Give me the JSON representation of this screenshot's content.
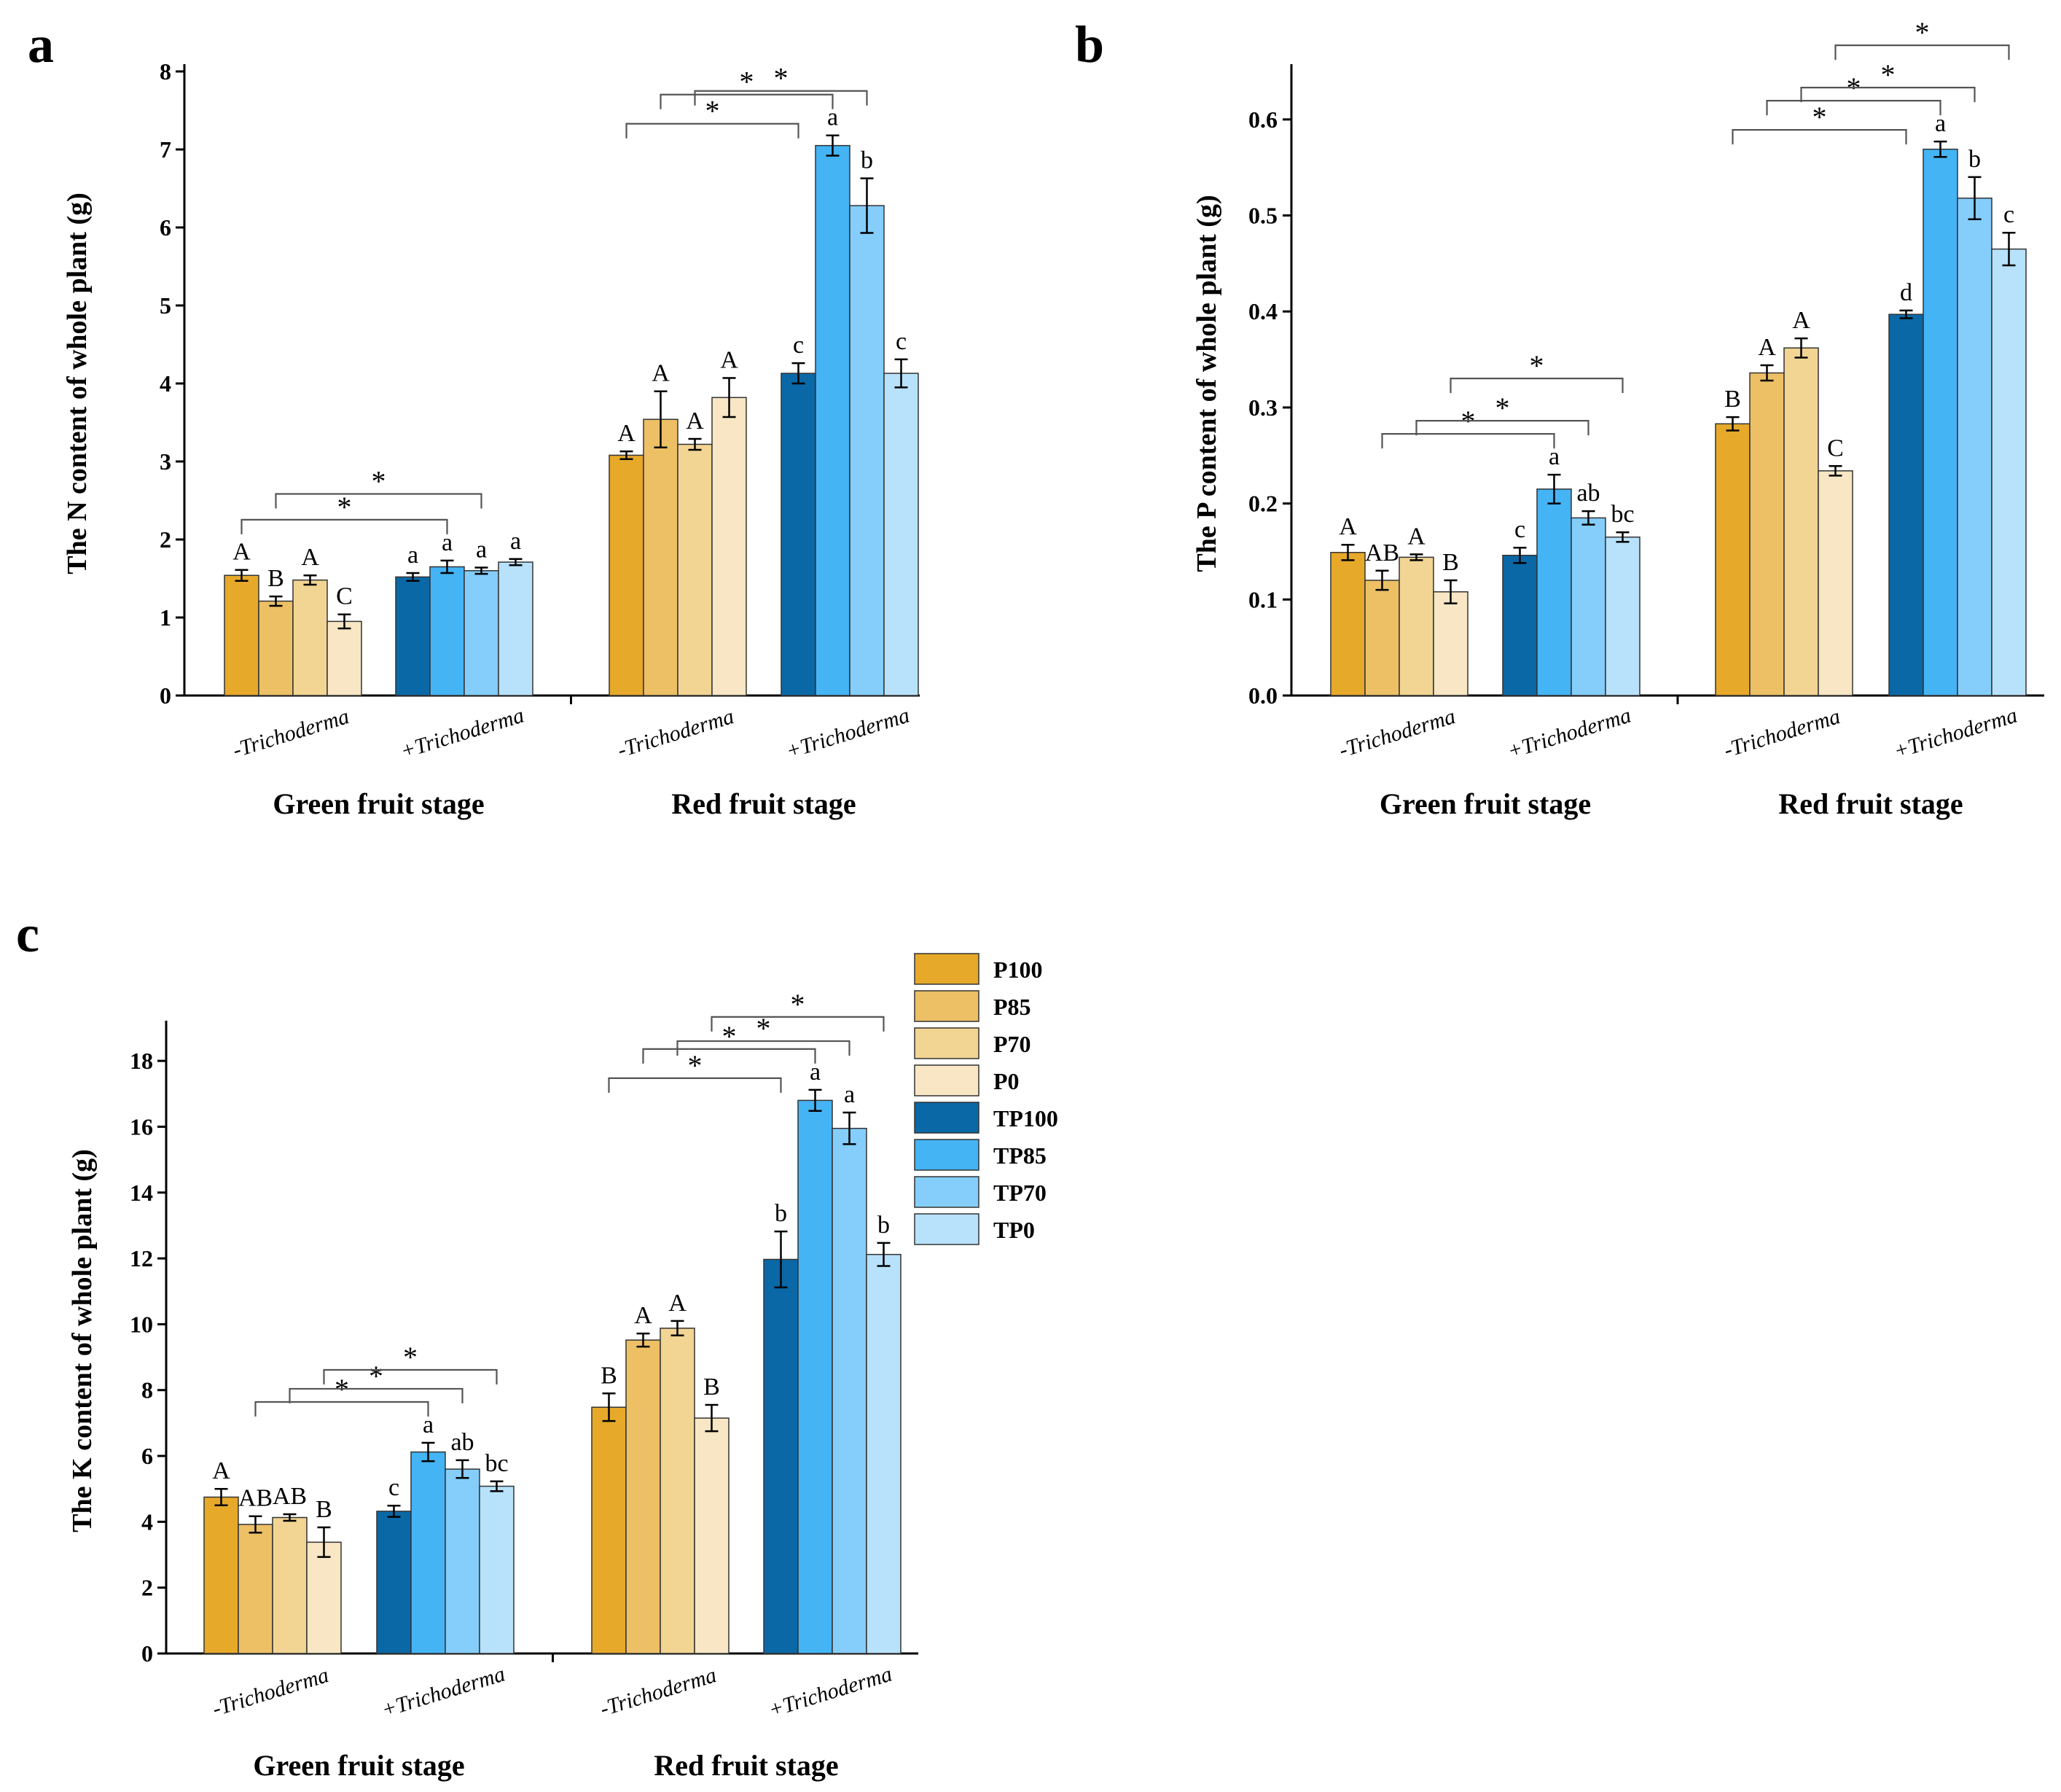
{
  "series_names": [
    "P100",
    "P85",
    "P70",
    "P0",
    "TP100",
    "TP85",
    "TP70",
    "TP0"
  ],
  "colors": {
    "P100": "#e6a92a",
    "P85": "#edc066",
    "P70": "#f2d493",
    "P0": "#f8e6c4",
    "TP100": "#0a68a6",
    "TP85": "#44b4f5",
    "TP70": "#85cdfb",
    "TP0": "#b8e2fb"
  },
  "chart_data": [
    {
      "id": "a",
      "type": "bar",
      "panel_label": "a",
      "ylabel": "The N content of whole plant (g)",
      "ylim": [
        0,
        8
      ],
      "yticks": [
        0,
        1,
        2,
        3,
        4,
        5,
        6,
        7,
        8
      ],
      "stages": [
        "Green fruit stage",
        "Red fruit stage"
      ],
      "groups": [
        {
          "stage": 0,
          "label": "-Trichoderma",
          "series": [
            "P100",
            "P85",
            "P70",
            "P0"
          ],
          "values": [
            1.54,
            1.21,
            1.48,
            0.95
          ],
          "errors": [
            0.07,
            0.06,
            0.06,
            0.09
          ],
          "letters": [
            "A",
            "B",
            "A",
            "C"
          ]
        },
        {
          "stage": 0,
          "label": "+Trichoderma",
          "series": [
            "TP100",
            "TP85",
            "TP70",
            "TP0"
          ],
          "values": [
            1.52,
            1.65,
            1.6,
            1.71
          ],
          "errors": [
            0.05,
            0.08,
            0.04,
            0.04
          ],
          "letters": [
            "a",
            "a",
            "a",
            "a"
          ]
        },
        {
          "stage": 1,
          "label": "-Trichoderma",
          "series": [
            "P100",
            "P85",
            "P70",
            "P0"
          ],
          "values": [
            3.08,
            3.54,
            3.22,
            3.82
          ],
          "errors": [
            0.05,
            0.36,
            0.07,
            0.25
          ],
          "letters": [
            "A",
            "A",
            "A",
            "A"
          ]
        },
        {
          "stage": 1,
          "label": "+Trichoderma",
          "series": [
            "TP100",
            "TP85",
            "TP70",
            "TP0"
          ],
          "values": [
            4.13,
            7.05,
            6.28,
            4.13
          ],
          "errors": [
            0.13,
            0.13,
            0.35,
            0.18
          ],
          "letters": [
            "c",
            "a",
            "b",
            "c"
          ]
        }
      ],
      "significance": [
        {
          "from": [
            0,
            0
          ],
          "to": [
            1,
            1
          ],
          "level": 0,
          "text": "*"
        },
        {
          "from": [
            0,
            1
          ],
          "to": [
            1,
            2
          ],
          "level": 1,
          "text": "*"
        },
        {
          "from": [
            2,
            0
          ],
          "to": [
            3,
            0
          ],
          "level": 0,
          "text": "*"
        },
        {
          "from": [
            2,
            1
          ],
          "to": [
            3,
            1
          ],
          "level": 0,
          "text": "*"
        },
        {
          "from": [
            2,
            2
          ],
          "to": [
            3,
            2
          ],
          "level": 1,
          "text": "*"
        }
      ]
    },
    {
      "id": "b",
      "type": "bar",
      "panel_label": "b",
      "ylabel": "The P content of whole plant (g)",
      "ylim": [
        0,
        0.65
      ],
      "yticks": [
        0.0,
        0.1,
        0.2,
        0.3,
        0.4,
        0.5,
        0.6
      ],
      "ytick_labels": [
        "0.0",
        "0.1",
        "0.2",
        "0.3",
        "0.4",
        "0.5",
        "0.6"
      ],
      "stages": [
        "Green fruit stage",
        "Red fruit stage"
      ],
      "groups": [
        {
          "stage": 0,
          "label": "-Trichoderma",
          "series": [
            "P100",
            "P85",
            "P70",
            "P0"
          ],
          "values": [
            0.149,
            0.12,
            0.144,
            0.108
          ],
          "errors": [
            0.008,
            0.01,
            0.003,
            0.012
          ],
          "letters": [
            "A",
            "AB",
            "A",
            "B"
          ]
        },
        {
          "stage": 0,
          "label": "+Trichoderma",
          "series": [
            "TP100",
            "TP85",
            "TP70",
            "TP0"
          ],
          "values": [
            0.146,
            0.215,
            0.185,
            0.165
          ],
          "errors": [
            0.008,
            0.015,
            0.007,
            0.005
          ],
          "letters": [
            "c",
            "a",
            "ab",
            "bc"
          ]
        },
        {
          "stage": 1,
          "label": "-Trichoderma",
          "series": [
            "P100",
            "P85",
            "P70",
            "P0"
          ],
          "values": [
            0.283,
            0.336,
            0.362,
            0.234
          ],
          "errors": [
            0.007,
            0.008,
            0.01,
            0.005
          ],
          "letters": [
            "B",
            "A",
            "A",
            "C"
          ]
        },
        {
          "stage": 1,
          "label": "+Trichoderma",
          "series": [
            "TP100",
            "TP85",
            "TP70",
            "TP0"
          ],
          "values": [
            0.397,
            0.569,
            0.518,
            0.465
          ],
          "errors": [
            0.004,
            0.008,
            0.022,
            0.017
          ],
          "letters": [
            "d",
            "a",
            "b",
            "c"
          ]
        }
      ],
      "significance": [
        {
          "from": [
            0,
            1
          ],
          "to": [
            1,
            1
          ],
          "level": 0,
          "text": "*"
        },
        {
          "from": [
            0,
            2
          ],
          "to": [
            1,
            2
          ],
          "level": 1,
          "text": "*"
        },
        {
          "from": [
            0,
            3
          ],
          "to": [
            1,
            3
          ],
          "level": 2,
          "text": "*"
        },
        {
          "from": [
            2,
            0
          ],
          "to": [
            3,
            0
          ],
          "level": 0,
          "text": "*"
        },
        {
          "from": [
            2,
            1
          ],
          "to": [
            3,
            1
          ],
          "level": 0,
          "text": "*"
        },
        {
          "from": [
            2,
            2
          ],
          "to": [
            3,
            2
          ],
          "level": 1,
          "text": "*"
        },
        {
          "from": [
            2,
            3
          ],
          "to": [
            3,
            3
          ],
          "level": 2,
          "text": "*"
        }
      ]
    },
    {
      "id": "c",
      "type": "bar",
      "panel_label": "c",
      "ylabel": "The K content of whole plant (g)",
      "ylim": [
        0,
        19
      ],
      "yticks": [
        0,
        2,
        4,
        6,
        8,
        10,
        12,
        14,
        16,
        18
      ],
      "stages": [
        "Green fruit stage",
        "Red fruit stage"
      ],
      "groups": [
        {
          "stage": 0,
          "label": "-Trichoderma",
          "series": [
            "P100",
            "P85",
            "P70",
            "P0"
          ],
          "values": [
            4.75,
            3.92,
            4.13,
            3.38
          ],
          "errors": [
            0.25,
            0.25,
            0.1,
            0.45
          ],
          "letters": [
            "A",
            "AB",
            "AB",
            "B"
          ]
        },
        {
          "stage": 0,
          "label": "+Trichoderma",
          "series": [
            "TP100",
            "TP85",
            "TP70",
            "TP0"
          ],
          "values": [
            4.32,
            6.12,
            5.6,
            5.08
          ],
          "errors": [
            0.17,
            0.28,
            0.27,
            0.15
          ],
          "letters": [
            "c",
            "a",
            "ab",
            "bc"
          ]
        },
        {
          "stage": 1,
          "label": "-Trichoderma",
          "series": [
            "P100",
            "P85",
            "P70",
            "P0"
          ],
          "values": [
            7.48,
            9.52,
            9.88,
            7.15
          ],
          "errors": [
            0.42,
            0.2,
            0.22,
            0.4
          ],
          "letters": [
            "B",
            "A",
            "A",
            "B"
          ]
        },
        {
          "stage": 1,
          "label": "+Trichoderma",
          "series": [
            "TP100",
            "TP85",
            "TP70",
            "TP0"
          ],
          "values": [
            11.97,
            16.8,
            15.95,
            12.12
          ],
          "errors": [
            0.85,
            0.32,
            0.48,
            0.35
          ],
          "letters": [
            "b",
            "a",
            "a",
            "b"
          ]
        }
      ],
      "significance": [
        {
          "from": [
            0,
            1
          ],
          "to": [
            1,
            1
          ],
          "level": 0,
          "text": "*"
        },
        {
          "from": [
            0,
            2
          ],
          "to": [
            1,
            2
          ],
          "level": 1,
          "text": "*"
        },
        {
          "from": [
            0,
            3
          ],
          "to": [
            1,
            3
          ],
          "level": 2,
          "text": "*"
        },
        {
          "from": [
            2,
            0
          ],
          "to": [
            3,
            0
          ],
          "level": 0,
          "text": "*"
        },
        {
          "from": [
            2,
            1
          ],
          "to": [
            3,
            1
          ],
          "level": 0,
          "text": "*"
        },
        {
          "from": [
            2,
            2
          ],
          "to": [
            3,
            2
          ],
          "level": 1,
          "text": "*"
        },
        {
          "from": [
            2,
            3
          ],
          "to": [
            3,
            3
          ],
          "level": 2,
          "text": "*"
        }
      ]
    }
  ]
}
